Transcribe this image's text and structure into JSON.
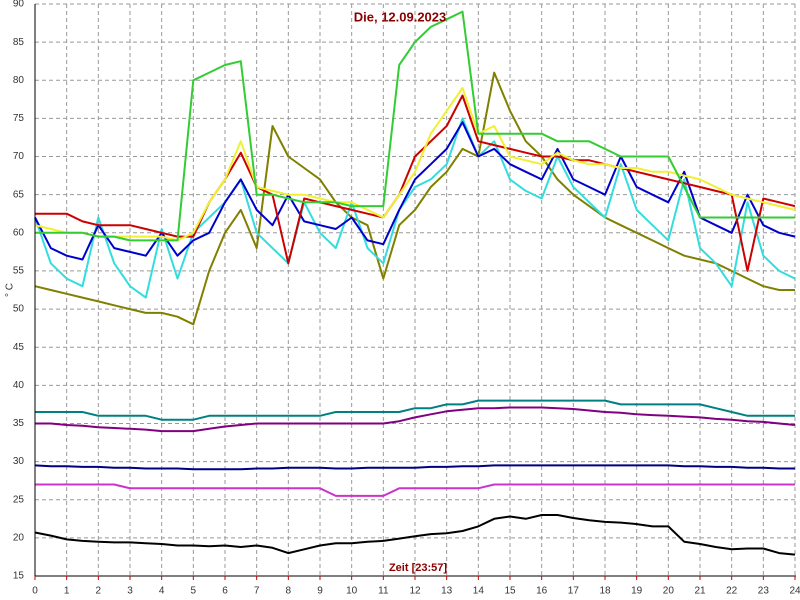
{
  "chart_data": {
    "type": "line",
    "title": "Die, 12.09.2023",
    "x_label": "Zeit [23:57]",
    "y_label": "° C",
    "x": [
      0,
      0.5,
      1,
      1.5,
      2,
      2.5,
      3,
      3.5,
      4,
      4.5,
      5,
      5.5,
      6,
      6.5,
      7,
      7.5,
      8,
      8.5,
      9,
      9.5,
      10,
      10.5,
      11,
      11.5,
      12,
      12.5,
      13,
      13.5,
      14,
      14.5,
      15,
      15.5,
      16,
      16.5,
      17,
      17.5,
      18,
      18.5,
      19,
      19.5,
      20,
      20.5,
      21,
      21.5,
      22,
      22.5,
      23,
      23.5,
      24
    ],
    "xlim": [
      0,
      24
    ],
    "xticks": [
      0,
      1,
      2,
      3,
      4,
      5,
      6,
      7,
      8,
      9,
      10,
      11,
      12,
      13,
      14,
      15,
      16,
      17,
      18,
      19,
      20,
      21,
      22,
      23,
      24
    ],
    "ylim": [
      15,
      90
    ],
    "yticks": [
      15,
      20,
      25,
      30,
      35,
      40,
      45,
      50,
      55,
      60,
      65,
      70,
      75,
      80,
      85,
      90
    ],
    "grid": true,
    "series": [
      {
        "color": "#33cc33",
        "values": [
          60,
          60,
          60,
          60,
          59.5,
          59.5,
          59,
          59,
          59,
          59,
          80,
          81,
          82,
          82.5,
          65,
          65,
          64.5,
          64,
          64,
          64,
          63.5,
          63.5,
          63.5,
          82,
          85,
          87,
          88,
          89,
          73,
          73,
          73,
          73,
          73,
          72,
          72,
          72,
          71,
          70,
          70,
          70,
          70,
          66,
          62,
          62,
          62,
          62,
          62,
          62,
          62
        ]
      },
      {
        "color": "#f0f030",
        "values": [
          61,
          60.5,
          60,
          60,
          59.5,
          59.5,
          59.5,
          59.5,
          59.5,
          59,
          60,
          64,
          67,
          72,
          66,
          65.5,
          65,
          65,
          64.5,
          64,
          64,
          63,
          62,
          65,
          68,
          73,
          76,
          79,
          73,
          74,
          70,
          69.5,
          69,
          70.5,
          69.5,
          69,
          69,
          68.5,
          68.5,
          68,
          68,
          67.5,
          67,
          66,
          65,
          64.5,
          64,
          63.5,
          63
        ]
      },
      {
        "color": "#cc0000",
        "values": [
          62.5,
          62.5,
          62.5,
          61.5,
          61,
          61,
          61,
          60.5,
          60,
          59.5,
          59.5,
          64,
          67,
          70.5,
          66,
          65,
          56,
          64.5,
          64,
          63.5,
          63,
          62.5,
          62,
          65,
          70,
          72,
          74,
          78,
          72,
          71.5,
          71,
          70.5,
          70,
          70,
          69.5,
          69.5,
          69,
          68.5,
          68,
          67.5,
          67,
          66.5,
          66,
          65.5,
          65,
          55,
          64.5,
          64,
          63.5
        ]
      },
      {
        "color": "#0000cc",
        "values": [
          62,
          58,
          57,
          56.5,
          61,
          58,
          57.5,
          57,
          60,
          57,
          59,
          60,
          64,
          67,
          63,
          61,
          65,
          61.5,
          61,
          60.5,
          62,
          59,
          58.5,
          63,
          67,
          69,
          71,
          74.5,
          70,
          71,
          69,
          68,
          67,
          71,
          67,
          66,
          65,
          70,
          66,
          65,
          64,
          68,
          62,
          61,
          60,
          65,
          61,
          60,
          59.5
        ]
      },
      {
        "color": "#33dddd",
        "values": [
          62,
          56,
          54,
          53,
          62,
          56,
          53,
          51.5,
          60.5,
          54,
          60,
          62,
          64,
          67,
          60,
          58,
          56,
          64,
          60,
          58,
          64,
          58,
          56,
          63,
          66,
          67,
          69,
          75,
          70,
          72,
          67,
          65.5,
          64.5,
          70,
          66,
          64,
          62,
          69,
          63,
          61,
          59,
          67,
          58,
          56,
          53,
          64,
          57,
          55,
          54
        ]
      },
      {
        "color": "#808000",
        "values": [
          53,
          52.5,
          52,
          51.5,
          51,
          50.5,
          50,
          49.5,
          49.5,
          49,
          48,
          55,
          60,
          63,
          58,
          74,
          70,
          68.5,
          67,
          64,
          62,
          61,
          54,
          61,
          63,
          66,
          68,
          71,
          70,
          81,
          76,
          72,
          70,
          67,
          65,
          63.5,
          62,
          61,
          60,
          59,
          58,
          57,
          56.5,
          56,
          55,
          54,
          53,
          52.5,
          52.5
        ]
      },
      {
        "color": "#008080",
        "values": [
          36.5,
          36.5,
          36.5,
          36.5,
          36,
          36,
          36,
          36,
          35.5,
          35.5,
          35.5,
          36,
          36,
          36,
          36,
          36,
          36,
          36,
          36,
          36.5,
          36.5,
          36.5,
          36.5,
          36.5,
          37,
          37,
          37.5,
          37.5,
          38,
          38,
          38,
          38,
          38,
          38,
          38,
          38,
          38,
          37.5,
          37.5,
          37.5,
          37.5,
          37.5,
          37.5,
          37,
          36.5,
          36,
          36,
          36,
          36
        ]
      },
      {
        "color": "#800080",
        "values": [
          35,
          35,
          34.8,
          34.7,
          34.5,
          34.4,
          34.3,
          34.2,
          34,
          34,
          34,
          34.3,
          34.6,
          34.8,
          35,
          35,
          35,
          35,
          35,
          35,
          35,
          35,
          35,
          35.3,
          35.8,
          36.2,
          36.6,
          36.8,
          37,
          37,
          37.1,
          37.1,
          37.1,
          37,
          36.9,
          36.7,
          36.5,
          36.4,
          36.2,
          36.1,
          36,
          35.9,
          35.8,
          35.6,
          35.5,
          35.3,
          35.2,
          35,
          34.8
        ]
      },
      {
        "color": "#000080",
        "values": [
          29.5,
          29.4,
          29.4,
          29.3,
          29.3,
          29.2,
          29.2,
          29.1,
          29.1,
          29.1,
          29,
          29,
          29,
          29,
          29.1,
          29.1,
          29.2,
          29.2,
          29.2,
          29.1,
          29.1,
          29.2,
          29.2,
          29.2,
          29.2,
          29.3,
          29.3,
          29.4,
          29.4,
          29.5,
          29.5,
          29.5,
          29.5,
          29.5,
          29.5,
          29.5,
          29.5,
          29.5,
          29.5,
          29.5,
          29.5,
          29.4,
          29.4,
          29.3,
          29.3,
          29.2,
          29.2,
          29.1,
          29.1
        ]
      },
      {
        "color": "#cc33cc",
        "values": [
          27,
          27,
          27,
          27,
          27,
          27,
          26.5,
          26.5,
          26.5,
          26.5,
          26.5,
          26.5,
          26.5,
          26.5,
          26.5,
          26.5,
          26.5,
          26.5,
          26.5,
          25.5,
          25.5,
          25.5,
          25.5,
          26.5,
          26.5,
          26.5,
          26.5,
          26.5,
          26.5,
          27,
          27,
          27,
          27,
          27,
          27,
          27,
          27,
          27,
          27,
          27,
          27,
          27,
          27,
          27,
          27,
          27,
          27,
          27,
          27
        ]
      },
      {
        "color": "#000000",
        "values": [
          20.7,
          20.3,
          19.8,
          19.6,
          19.5,
          19.4,
          19.4,
          19.3,
          19.2,
          19,
          19,
          18.9,
          19,
          18.8,
          19,
          18.7,
          18,
          18.5,
          19,
          19.3,
          19.3,
          19.5,
          19.6,
          19.9,
          20.2,
          20.5,
          20.6,
          20.9,
          21.5,
          22.5,
          22.8,
          22.5,
          23,
          23,
          22.6,
          22.3,
          22.1,
          22,
          21.8,
          21.5,
          21.5,
          19.5,
          19.2,
          18.8,
          18.5,
          18.6,
          18.6,
          18,
          17.8
        ]
      }
    ]
  }
}
